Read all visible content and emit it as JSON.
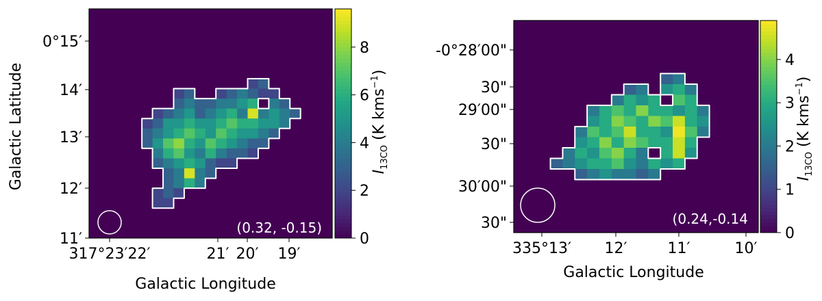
{
  "chart_data": [
    {
      "type": "heatmap",
      "xlabel": "Galactic Longitude",
      "ylabel": "Galactic Latitude",
      "colorbar_label": "I",
      "colorbar_sub": "13CO",
      "colorbar_unit_a": " (K kms",
      "colorbar_unit_b": ")",
      "colorbar_unit_sup": "−1",
      "colormap": "viridis",
      "colorbar_range": [
        0,
        9.6
      ],
      "colorbar_ticks": [
        "0",
        "2",
        "4",
        "6",
        "8"
      ],
      "x_tick_labels": [
        "317°23′22′",
        "21′",
        "20′",
        "19′"
      ],
      "y_tick_labels": [
        "11′",
        "12′",
        "13′",
        "14′",
        "0°15′"
      ],
      "annotation": "(0.32, -0.15)",
      "beam": "circle",
      "contour_color": "#ffffff",
      "note": "pixel intensity map with white contour outlining the clump",
      "peak_values": [
        9.5,
        9.2,
        8.5
      ],
      "values": [
        [
          0,
          0,
          0,
          0,
          0,
          0,
          0,
          0,
          0,
          0,
          0,
          0,
          0,
          0,
          0,
          0,
          0,
          0,
          0,
          0,
          0,
          0,
          0
        ],
        [
          0,
          0,
          0,
          0,
          0,
          0,
          0,
          0,
          0,
          0,
          0,
          0,
          0,
          0,
          0,
          0,
          0,
          0,
          0,
          0,
          0,
          0,
          0
        ],
        [
          0,
          0,
          0,
          0,
          0,
          0,
          0,
          0,
          0,
          0,
          0,
          0,
          0,
          0,
          0,
          0,
          0,
          0,
          0,
          0,
          0,
          0,
          0
        ],
        [
          0,
          0,
          0,
          0,
          0,
          0,
          0,
          0,
          0,
          0,
          0,
          0,
          0,
          0,
          0,
          0,
          0,
          0,
          0,
          0,
          0,
          0,
          0
        ],
        [
          0,
          0,
          0,
          0,
          0,
          0,
          0,
          0,
          0,
          0,
          0,
          0,
          0,
          0,
          0,
          0,
          0,
          0,
          0,
          0,
          0,
          0,
          0
        ],
        [
          0,
          0,
          0,
          0,
          0,
          0,
          0,
          0,
          0,
          0,
          0,
          0,
          0,
          0,
          0,
          0,
          0,
          0,
          0,
          0,
          0,
          0,
          0
        ],
        [
          0,
          0,
          0,
          0,
          0,
          0,
          0,
          0,
          0,
          0,
          0,
          0,
          0,
          0,
          0,
          0,
          0,
          0,
          0,
          0,
          0,
          0,
          0
        ],
        [
          0,
          0,
          0,
          0,
          0,
          0,
          0,
          0,
          0,
          0,
          0,
          0,
          0,
          0,
          0,
          2,
          3,
          0,
          0,
          0,
          0,
          0,
          0
        ],
        [
          0,
          0,
          0,
          0,
          0,
          0,
          0,
          0,
          2,
          3,
          0,
          0,
          2,
          3,
          4,
          3,
          2,
          2,
          0,
          0,
          0,
          0,
          0
        ],
        [
          0,
          0,
          0,
          0,
          0,
          0,
          0,
          0,
          3,
          4,
          3,
          3,
          4,
          4,
          5,
          6,
          0,
          4,
          3,
          0,
          0,
          0,
          0
        ],
        [
          0,
          0,
          0,
          0,
          0,
          0,
          2,
          3,
          4,
          5,
          3,
          4,
          5,
          6,
          4,
          9,
          4,
          5,
          4,
          3,
          0,
          0,
          0
        ],
        [
          0,
          0,
          0,
          0,
          0,
          2,
          3,
          5,
          5,
          6,
          5,
          5,
          6,
          7,
          6,
          6,
          5,
          5,
          4,
          0,
          0,
          0,
          0
        ],
        [
          0,
          0,
          0,
          0,
          0,
          3,
          4,
          5,
          6,
          7,
          6,
          5,
          7,
          6,
          5,
          5,
          4,
          3,
          0,
          0,
          0,
          0,
          0
        ],
        [
          0,
          0,
          0,
          0,
          0,
          3,
          5,
          7,
          8,
          6,
          5,
          7,
          6,
          5,
          4,
          3,
          3,
          0,
          0,
          0,
          0,
          0,
          0
        ],
        [
          0,
          0,
          0,
          0,
          0,
          0,
          4,
          6,
          7,
          5,
          4,
          6,
          4,
          3,
          3,
          2,
          0,
          0,
          0,
          0,
          0,
          0,
          0
        ],
        [
          0,
          0,
          0,
          0,
          0,
          0,
          3,
          4,
          5,
          6,
          5,
          3,
          2,
          2,
          0,
          0,
          0,
          0,
          0,
          0,
          0,
          0,
          0
        ],
        [
          0,
          0,
          0,
          0,
          0,
          0,
          0,
          3,
          4,
          9,
          4,
          3,
          0,
          0,
          0,
          0,
          0,
          0,
          0,
          0,
          0,
          0,
          0
        ],
        [
          0,
          0,
          0,
          0,
          0,
          0,
          0,
          3,
          4,
          6,
          4,
          0,
          0,
          0,
          0,
          0,
          0,
          0,
          0,
          0,
          0,
          0,
          0
        ],
        [
          0,
          0,
          0,
          0,
          0,
          0,
          2,
          3,
          2,
          0,
          0,
          0,
          0,
          0,
          0,
          0,
          0,
          0,
          0,
          0,
          0,
          0,
          0
        ],
        [
          0,
          0,
          0,
          0,
          0,
          0,
          2,
          2,
          0,
          0,
          0,
          0,
          0,
          0,
          0,
          0,
          0,
          0,
          0,
          0,
          0,
          0,
          0
        ],
        [
          0,
          0,
          0,
          0,
          0,
          0,
          0,
          0,
          0,
          0,
          0,
          0,
          0,
          0,
          0,
          0,
          0,
          0,
          0,
          0,
          0,
          0,
          0
        ],
        [
          0,
          0,
          0,
          0,
          0,
          0,
          0,
          0,
          0,
          0,
          0,
          0,
          0,
          0,
          0,
          0,
          0,
          0,
          0,
          0,
          0,
          0,
          0
        ],
        [
          0,
          0,
          0,
          0,
          0,
          0,
          0,
          0,
          0,
          0,
          0,
          0,
          0,
          0,
          0,
          0,
          0,
          0,
          0,
          0,
          0,
          0,
          0
        ]
      ]
    },
    {
      "type": "heatmap",
      "xlabel": "Galactic Longitude",
      "ylabel": "",
      "colorbar_label": "I",
      "colorbar_sub": "13CO",
      "colorbar_unit_a": " (K kms",
      "colorbar_unit_b": ")",
      "colorbar_unit_sup": "−1",
      "colormap": "viridis",
      "colorbar_range": [
        0,
        4.9
      ],
      "colorbar_ticks": [
        "0",
        "1",
        "2",
        "3",
        "4"
      ],
      "x_tick_labels": [
        "335°13′",
        "12′",
        "11′",
        "10′"
      ],
      "y_tick_labels": [
        "30\"",
        "30′00\"",
        "30\"",
        "29′00\"",
        "30\"",
        "-0°28′00\""
      ],
      "annotation": "(0.24,-0.14",
      "beam": "circle",
      "contour_color": "#ffffff",
      "note": "pixel intensity map with white contour outlining the clump",
      "values": [
        [
          0,
          0,
          0,
          0,
          0,
          0,
          0,
          0,
          0,
          0,
          0,
          0,
          0,
          0,
          0,
          0,
          0,
          0,
          0,
          0
        ],
        [
          0,
          0,
          0,
          0,
          0,
          0,
          0,
          0,
          0,
          0,
          0,
          0,
          0,
          0,
          0,
          0,
          0,
          0,
          0,
          0
        ],
        [
          0,
          0,
          0,
          0,
          0,
          0,
          0,
          0,
          0,
          0,
          0,
          0,
          0,
          0,
          0,
          0,
          0,
          0,
          0,
          0
        ],
        [
          0,
          0,
          0,
          0,
          0,
          0,
          0,
          0,
          0,
          0,
          0,
          0,
          0,
          0,
          0,
          0,
          0,
          0,
          0,
          0
        ],
        [
          0,
          0,
          0,
          0,
          0,
          0,
          0,
          0,
          0,
          0,
          0,
          0,
          0,
          0,
          0,
          0,
          0,
          0,
          0,
          0
        ],
        [
          0,
          0,
          0,
          0,
          0,
          0,
          0,
          0,
          0,
          0,
          0,
          0,
          1.5,
          2,
          0,
          0,
          0,
          0,
          0,
          0
        ],
        [
          0,
          0,
          0,
          0,
          0,
          0,
          0,
          0,
          0,
          1.5,
          2,
          0,
          2.5,
          3,
          2,
          0,
          0,
          0,
          0,
          0
        ],
        [
          0,
          0,
          0,
          0,
          0,
          0,
          0,
          0,
          2,
          3,
          2.5,
          3,
          0,
          3.5,
          3,
          0,
          0,
          0,
          0,
          0
        ],
        [
          0,
          0,
          0,
          0,
          0,
          0,
          2,
          3,
          3.5,
          3,
          4,
          3,
          3,
          2.5,
          3,
          2,
          0,
          0,
          0,
          0
        ],
        [
          0,
          0,
          0,
          0,
          0,
          0,
          2.5,
          3,
          4,
          3.5,
          3,
          4,
          3.5,
          4.5,
          3,
          2.5,
          0,
          0,
          0,
          0
        ],
        [
          0,
          0,
          0,
          0,
          0,
          2,
          3.5,
          3,
          3.5,
          4.5,
          3,
          3,
          2.5,
          4.8,
          3.5,
          2,
          0,
          0,
          0,
          0
        ],
        [
          0,
          0,
          0,
          0,
          0,
          2.5,
          3,
          4,
          3,
          4,
          3.5,
          3,
          3,
          4.5,
          3,
          0,
          0,
          0,
          0,
          0
        ],
        [
          0,
          0,
          0,
          0,
          2,
          3,
          2.5,
          3.5,
          4,
          3,
          2,
          0,
          3,
          4.5,
          2.5,
          0,
          0,
          0,
          0,
          0
        ],
        [
          0,
          0,
          0,
          1.5,
          2,
          2.5,
          3,
          3,
          3.5,
          2.5,
          2,
          3,
          2.5,
          3,
          0,
          0,
          0,
          0,
          0,
          0
        ],
        [
          0,
          0,
          0,
          0,
          0,
          1.5,
          2,
          2.5,
          2,
          2,
          1.5,
          2,
          0,
          0,
          0,
          0,
          0,
          0,
          0,
          0
        ],
        [
          0,
          0,
          0,
          0,
          0,
          0,
          0,
          0,
          0,
          0,
          0,
          0,
          0,
          0,
          0,
          0,
          0,
          0,
          0,
          0
        ],
        [
          0,
          0,
          0,
          0,
          0,
          0,
          0,
          0,
          0,
          0,
          0,
          0,
          0,
          0,
          0,
          0,
          0,
          0,
          0,
          0
        ],
        [
          0,
          0,
          0,
          0,
          0,
          0,
          0,
          0,
          0,
          0,
          0,
          0,
          0,
          0,
          0,
          0,
          0,
          0,
          0,
          0
        ],
        [
          0,
          0,
          0,
          0,
          0,
          0,
          0,
          0,
          0,
          0,
          0,
          0,
          0,
          0,
          0,
          0,
          0,
          0,
          0,
          0
        ],
        [
          0,
          0,
          0,
          0,
          0,
          0,
          0,
          0,
          0,
          0,
          0,
          0,
          0,
          0,
          0,
          0,
          0,
          0,
          0,
          0
        ]
      ]
    }
  ]
}
